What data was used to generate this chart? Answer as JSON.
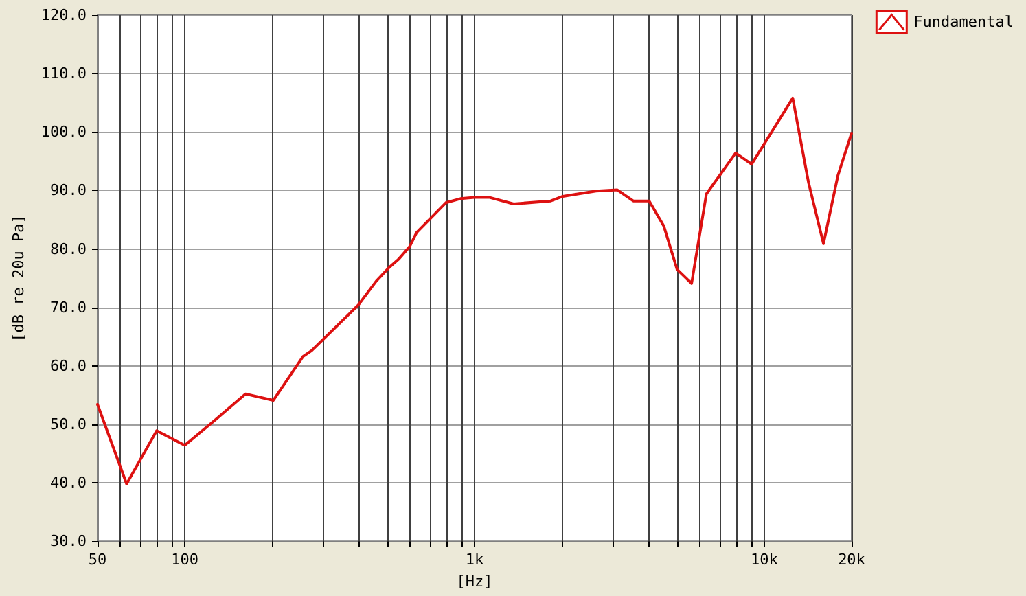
{
  "chart_data": {
    "type": "line",
    "xlabel": "[Hz]",
    "ylabel": "[dB re 20u Pa]",
    "log": "x",
    "xlim": [
      50,
      20000
    ],
    "xticks": [
      {
        "value": 50,
        "label": "50"
      },
      {
        "value": 60,
        "label": null
      },
      {
        "value": 70,
        "label": null
      },
      {
        "value": 80,
        "label": null
      },
      {
        "value": 90,
        "label": null
      },
      {
        "value": 100,
        "label": "100"
      },
      {
        "value": 200,
        "label": null
      },
      {
        "value": 300,
        "label": null
      },
      {
        "value": 400,
        "label": null
      },
      {
        "value": 500,
        "label": null
      },
      {
        "value": 600,
        "label": null
      },
      {
        "value": 700,
        "label": null
      },
      {
        "value": 800,
        "label": null
      },
      {
        "value": 900,
        "label": null
      },
      {
        "value": 1000,
        "label": "1k"
      },
      {
        "value": 2000,
        "label": null
      },
      {
        "value": 3000,
        "label": null
      },
      {
        "value": 4000,
        "label": null
      },
      {
        "value": 5000,
        "label": null
      },
      {
        "value": 6000,
        "label": null
      },
      {
        "value": 7000,
        "label": null
      },
      {
        "value": 8000,
        "label": null
      },
      {
        "value": 9000,
        "label": null
      },
      {
        "value": 10000,
        "label": "10k"
      },
      {
        "value": 20000,
        "label": "20k"
      }
    ],
    "ylim": [
      30,
      120
    ],
    "yticks": [
      {
        "value": 30,
        "label": "30.0"
      },
      {
        "value": 40,
        "label": "40.0"
      },
      {
        "value": 50,
        "label": "50.0"
      },
      {
        "value": 60,
        "label": "60.0"
      },
      {
        "value": 70,
        "label": "70.0"
      },
      {
        "value": 80,
        "label": "80.0"
      },
      {
        "value": 90,
        "label": "90.0"
      },
      {
        "value": 100,
        "label": "100.0"
      },
      {
        "value": 110,
        "label": "110.0"
      },
      {
        "value": 120,
        "label": "120.0"
      }
    ],
    "grid": true,
    "legend": "top right",
    "marker": "none",
    "line_style": "solid",
    "series": [
      {
        "name": "Fundamental",
        "color": "#dd1111",
        "x": [
          50,
          63,
          80,
          100,
          127,
          162,
          202,
          256,
          274,
          397,
          458,
          509,
          546,
          597,
          631,
          796,
          894,
          1000,
          1128,
          1364,
          1832,
          2017,
          2624,
          3110,
          3530,
          4005,
          4500,
          5000,
          5610,
          6310,
          7960,
          9040,
          12530,
          14200,
          16000,
          17950,
          20000
        ],
        "values": [
          53.4,
          39.8,
          48.9,
          46.4,
          50.7,
          55.2,
          54.1,
          61.6,
          62.6,
          70.4,
          74.5,
          76.9,
          78.2,
          80.4,
          82.8,
          87.9,
          88.6,
          88.8,
          88.8,
          87.7,
          88.2,
          89.0,
          89.9,
          90.1,
          88.2,
          88.2,
          83.9,
          76.5,
          74.1,
          89.4,
          96.4,
          94.5,
          105.8,
          91.4,
          80.9,
          92.6,
          99.8
        ]
      }
    ]
  }
}
